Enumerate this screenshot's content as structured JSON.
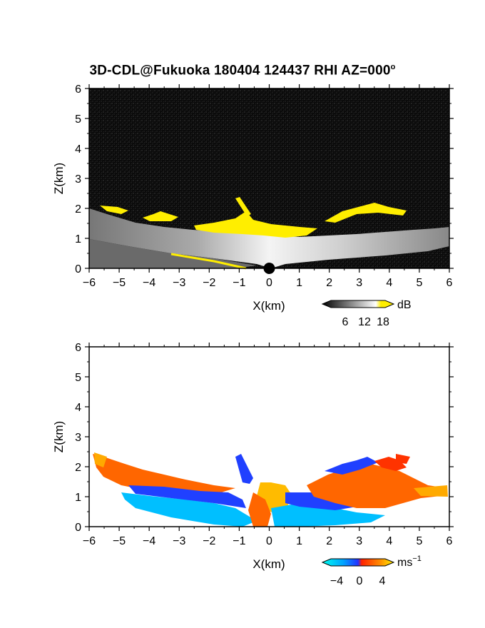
{
  "title": "3D-CDL@Fukuoka 180404 124437 RHI AZ=000",
  "title_degree": "o",
  "colors": {
    "reflectivity_background": "#0b0b0b",
    "reflectivity_strong": "#ffee00",
    "velocity_negative": "#00c8ff",
    "velocity_zero": "#1a3aff",
    "velocity_positive": "#ff3300",
    "velocity_max": "#ffee00"
  },
  "chart_data": [
    {
      "type": "heatmap",
      "title": "3D-CDL@Fukuoka 180404 124437 RHI AZ=000º",
      "xlabel": "X(km)",
      "ylabel": "Z(km)",
      "xlim": [
        -6,
        6
      ],
      "ylim": [
        0,
        6
      ],
      "x_ticks": [
        "−6",
        "−5",
        "−4",
        "−3",
        "−2",
        "−1",
        "0",
        "1",
        "2",
        "3",
        "4",
        "5",
        "6"
      ],
      "y_ticks": [
        "0",
        "1",
        "2",
        "3",
        "4",
        "5",
        "6"
      ],
      "colorbar": {
        "unit": "dB",
        "ticks": [
          "6",
          "12",
          "18"
        ],
        "range": [
          0,
          20
        ]
      },
      "layers": [
        {
          "x": [
            -6,
            -5,
            -4,
            -3,
            -2,
            -1,
            0,
            1,
            2,
            3,
            4,
            5,
            6
          ],
          "top": [
            2.2,
            1.7,
            1.5,
            1.45,
            1.35,
            1.3,
            1.25,
            1.2,
            1.15,
            1.15,
            1.2,
            1.2,
            1.3
          ],
          "value_db": 10
        },
        {
          "x": [
            -1,
            0,
            1,
            1.5
          ],
          "top": [
            1.4,
            1.45,
            1.4,
            1.4
          ],
          "value_db": 19
        }
      ]
    },
    {
      "type": "heatmap",
      "xlabel": "X(km)",
      "ylabel": "Z(km)",
      "xlim": [
        -6,
        6
      ],
      "ylim": [
        0,
        6
      ],
      "x_ticks": [
        "−6",
        "−5",
        "−4",
        "−3",
        "−2",
        "−1",
        "0",
        "1",
        "2",
        "3",
        "4",
        "5",
        "6"
      ],
      "y_ticks": [
        "0",
        "1",
        "2",
        "3",
        "4",
        "5",
        "6"
      ],
      "colorbar": {
        "unit": "ms",
        "unit_exp": "−1",
        "ticks": [
          "−4",
          "0",
          "4"
        ],
        "range": [
          -5,
          5
        ]
      },
      "regions": [
        {
          "x_range": [
            -6,
            -3.5
          ],
          "z_range": [
            1.3,
            2.4
          ],
          "velocity_ms": 3
        },
        {
          "x_range": [
            -4.5,
            -1
          ],
          "z_range": [
            0.1,
            0.9
          ],
          "velocity_ms": -3
        },
        {
          "x_range": [
            -0.5,
            1
          ],
          "z_range": [
            0.9,
            1.45
          ],
          "velocity_ms": 4
        },
        {
          "x_range": [
            1.5,
            6
          ],
          "z_range": [
            0.7,
            1.6
          ],
          "velocity_ms": 3
        },
        {
          "x_range": [
            0,
            2
          ],
          "z_range": [
            0,
            0.8
          ],
          "velocity_ms": -3
        }
      ]
    }
  ]
}
